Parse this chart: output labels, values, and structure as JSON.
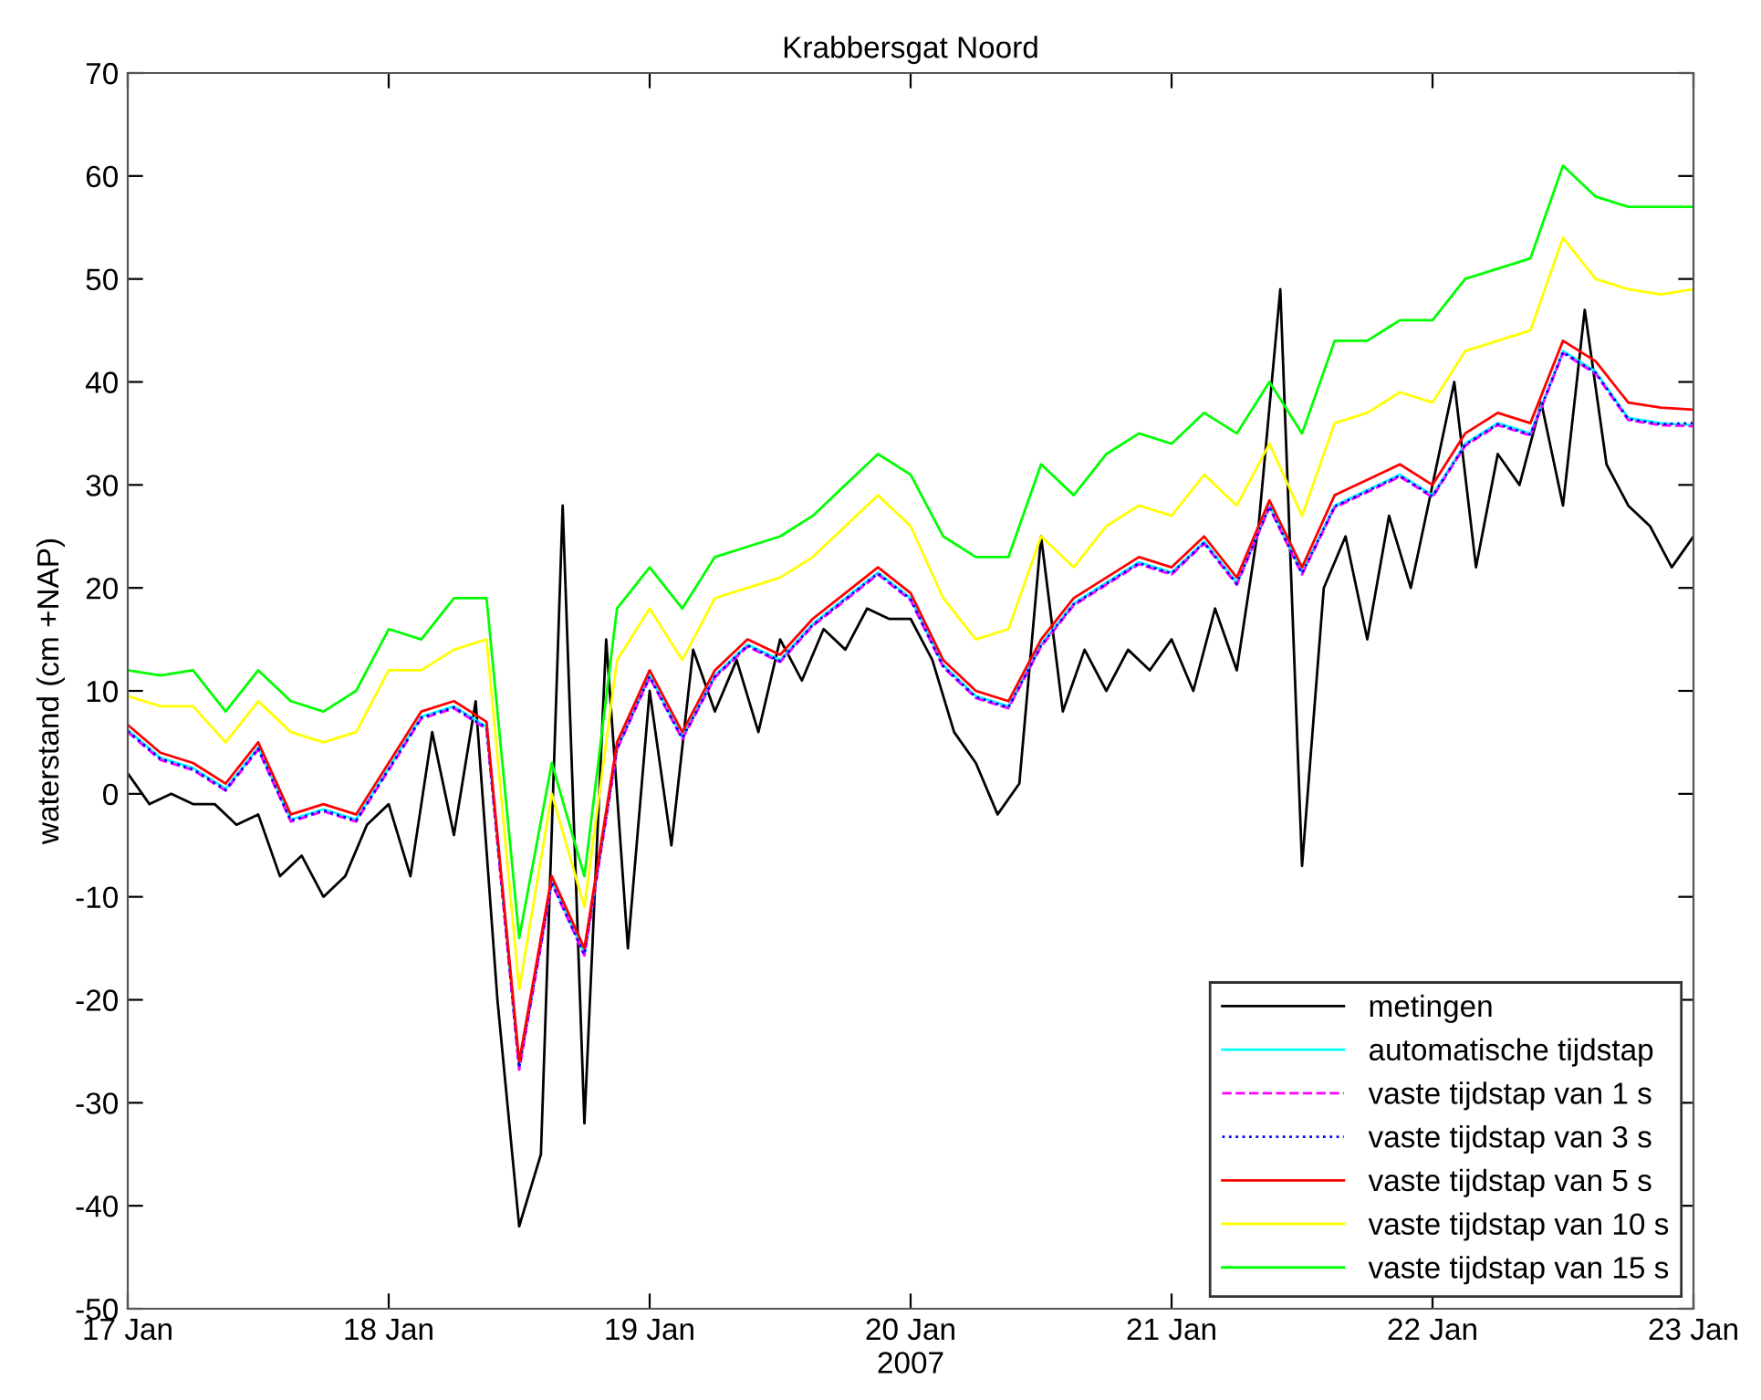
{
  "chart_data": {
    "type": "line",
    "title": "Krabbersgat Noord",
    "xlabel": "2007",
    "ylabel": "waterstand (cm +NAP)",
    "x": [
      "2007-01-17T00:00",
      "2007-01-17T03:00",
      "2007-01-17T06:00",
      "2007-01-17T09:00",
      "2007-01-17T12:00",
      "2007-01-17T15:00",
      "2007-01-17T18:00",
      "2007-01-17T21:00",
      "2007-01-18T00:00",
      "2007-01-18T03:00",
      "2007-01-18T06:00",
      "2007-01-18T09:00",
      "2007-01-18T12:00",
      "2007-01-18T15:00",
      "2007-01-18T18:00",
      "2007-01-18T21:00",
      "2007-01-19T00:00",
      "2007-01-19T03:00",
      "2007-01-19T06:00",
      "2007-01-19T09:00",
      "2007-01-19T12:00",
      "2007-01-19T15:00",
      "2007-01-19T18:00",
      "2007-01-19T21:00",
      "2007-01-20T00:00",
      "2007-01-20T03:00",
      "2007-01-20T06:00",
      "2007-01-20T09:00",
      "2007-01-20T12:00",
      "2007-01-20T15:00",
      "2007-01-20T18:00",
      "2007-01-20T21:00",
      "2007-01-21T00:00",
      "2007-01-21T03:00",
      "2007-01-21T06:00",
      "2007-01-21T09:00",
      "2007-01-21T12:00",
      "2007-01-21T15:00",
      "2007-01-21T18:00",
      "2007-01-21T21:00",
      "2007-01-22T00:00",
      "2007-01-22T03:00",
      "2007-01-22T06:00",
      "2007-01-22T09:00",
      "2007-01-22T12:00",
      "2007-01-22T15:00",
      "2007-01-22T18:00",
      "2007-01-22T21:00",
      "2007-01-23T00:00"
    ],
    "series": [
      {
        "name": "metingen",
        "color": "#000000",
        "x": [
          "2007-01-17T00:00",
          "2007-01-17T02:00",
          "2007-01-17T04:00",
          "2007-01-17T06:00",
          "2007-01-17T08:00",
          "2007-01-17T10:00",
          "2007-01-17T12:00",
          "2007-01-17T14:00",
          "2007-01-17T16:00",
          "2007-01-17T18:00",
          "2007-01-17T20:00",
          "2007-01-17T22:00",
          "2007-01-18T00:00",
          "2007-01-18T02:00",
          "2007-01-18T04:00",
          "2007-01-18T06:00",
          "2007-01-18T08:00",
          "2007-01-18T10:00",
          "2007-01-18T12:00",
          "2007-01-18T14:00",
          "2007-01-18T16:00",
          "2007-01-18T18:00",
          "2007-01-18T20:00",
          "2007-01-18T22:00",
          "2007-01-19T00:00",
          "2007-01-19T02:00",
          "2007-01-19T04:00",
          "2007-01-19T06:00",
          "2007-01-19T08:00",
          "2007-01-19T10:00",
          "2007-01-19T12:00",
          "2007-01-19T14:00",
          "2007-01-19T16:00",
          "2007-01-19T18:00",
          "2007-01-19T20:00",
          "2007-01-19T22:00",
          "2007-01-20T00:00",
          "2007-01-20T02:00",
          "2007-01-20T04:00",
          "2007-01-20T06:00",
          "2007-01-20T08:00",
          "2007-01-20T10:00",
          "2007-01-20T12:00",
          "2007-01-20T14:00",
          "2007-01-20T16:00",
          "2007-01-20T18:00",
          "2007-01-20T20:00",
          "2007-01-20T22:00",
          "2007-01-21T00:00",
          "2007-01-21T02:00",
          "2007-01-21T04:00",
          "2007-01-21T06:00",
          "2007-01-21T08:00",
          "2007-01-21T10:00",
          "2007-01-21T12:00",
          "2007-01-21T14:00",
          "2007-01-21T16:00",
          "2007-01-21T18:00",
          "2007-01-21T20:00",
          "2007-01-21T22:00",
          "2007-01-22T00:00",
          "2007-01-22T02:00",
          "2007-01-22T04:00",
          "2007-01-22T06:00",
          "2007-01-22T08:00",
          "2007-01-22T10:00",
          "2007-01-22T12:00",
          "2007-01-22T14:00",
          "2007-01-22T16:00",
          "2007-01-22T18:00",
          "2007-01-22T20:00",
          "2007-01-22T22:00",
          "2007-01-23T00:00"
        ],
        "values": [
          2,
          -1,
          0,
          -1,
          -1,
          -3,
          -2,
          -8,
          -6,
          -10,
          -8,
          -3,
          -1,
          -8,
          6,
          -4,
          9,
          -20,
          -42,
          -35,
          28,
          -32,
          15,
          -15,
          10,
          -5,
          14,
          8,
          13,
          6,
          15,
          11,
          16,
          14,
          18,
          17,
          17,
          13,
          6,
          3,
          -2,
          1,
          25,
          8,
          14,
          10,
          14,
          12,
          15,
          10,
          18,
          12,
          26,
          49,
          -7,
          20,
          25,
          15,
          27,
          20,
          30,
          40,
          22,
          33,
          30,
          38,
          28,
          47,
          32,
          28,
          26,
          22,
          25
        ]
      },
      {
        "name": "automatische tijdstap",
        "color": "#00ffff",
        "values": [
          6.2,
          3.5,
          2.5,
          0.5,
          4.5,
          -2.5,
          -1.5,
          -2.5,
          2.5,
          7.5,
          8.5,
          6.5,
          -26.5,
          -8.5,
          -15.5,
          4.5,
          11.5,
          5.5,
          11.5,
          14.5,
          13,
          16.5,
          19,
          21.5,
          19,
          12.5,
          9.5,
          8.5,
          14.5,
          18.5,
          20.5,
          22.5,
          21.5,
          24.5,
          20.5,
          28,
          21.5,
          28,
          29.5,
          31,
          29,
          34,
          36,
          35,
          43,
          41,
          36.5,
          36,
          35.8
        ]
      },
      {
        "name": "vaste tijdstap van 1 s",
        "color": "#ff00ff",
        "line_style": "dashed",
        "values": [
          6,
          3.3,
          2.3,
          0.3,
          4.3,
          -2.7,
          -1.7,
          -2.7,
          2.3,
          7.3,
          8.3,
          6.3,
          -26.8,
          -8.7,
          -15.7,
          4.3,
          11.3,
          5.3,
          11.3,
          14.3,
          12.8,
          16.3,
          18.8,
          21.3,
          18.8,
          12.3,
          9.3,
          8.3,
          14.3,
          18.3,
          20.3,
          22.3,
          21.3,
          24.3,
          20.3,
          27.8,
          21.3,
          27.8,
          29.3,
          30.8,
          28.8,
          33.8,
          35.8,
          34.8,
          42.8,
          40.8,
          36.3,
          35.8,
          35.7
        ]
      },
      {
        "name": "vaste tijdstap van 3 s",
        "color": "#0000ff",
        "line_style": "dotted",
        "values": [
          6.1,
          3.4,
          2.4,
          0.4,
          4.4,
          -2.6,
          -1.6,
          -2.6,
          2.4,
          7.4,
          8.4,
          6.4,
          -26.6,
          -8.6,
          -15.6,
          4.4,
          11.4,
          5.4,
          11.4,
          14.4,
          12.9,
          16.4,
          18.9,
          21.4,
          18.9,
          12.4,
          9.4,
          8.4,
          14.4,
          18.4,
          20.4,
          22.4,
          21.4,
          24.4,
          20.4,
          27.9,
          21.4,
          27.9,
          29.4,
          30.9,
          28.9,
          33.9,
          35.9,
          34.9,
          42.9,
          40.9,
          36.4,
          35.9,
          36
        ]
      },
      {
        "name": "vaste tijdstap van 5 s",
        "color": "#ff0000",
        "values": [
          6.7,
          4,
          3,
          1,
          5,
          -2,
          -1,
          -2,
          3,
          8,
          9,
          7,
          -26,
          -8,
          -15,
          5,
          12,
          6,
          12,
          15,
          13.5,
          17,
          19.5,
          22,
          19.5,
          13,
          10,
          9,
          15,
          19,
          21,
          23,
          22,
          25,
          21,
          28.5,
          22,
          29,
          30.5,
          32,
          30,
          35,
          37,
          36,
          44,
          42,
          38,
          37.5,
          37.3
        ]
      },
      {
        "name": "vaste tijdstap van 10 s",
        "color": "#ffff00",
        "values": [
          9.5,
          8.5,
          8.5,
          5,
          9,
          6,
          5,
          6,
          12,
          12,
          14,
          15,
          -19,
          0,
          -11,
          13,
          18,
          13,
          19,
          20,
          21,
          23,
          26,
          29,
          26,
          19,
          15,
          16,
          25,
          22,
          26,
          28,
          27,
          31,
          28,
          34,
          27,
          36,
          37,
          39,
          38,
          43,
          44,
          45,
          54,
          50,
          49,
          48.5,
          49
        ]
      },
      {
        "name": "vaste tijdstap van 15 s",
        "color": "#00ff00",
        "values": [
          12,
          11.5,
          12,
          8,
          12,
          9,
          8,
          10,
          16,
          15,
          19,
          19,
          -14,
          3,
          -8,
          18,
          22,
          18,
          23,
          24,
          25,
          27,
          30,
          33,
          31,
          25,
          23,
          23,
          32,
          29,
          33,
          35,
          34,
          37,
          35,
          40,
          35,
          44,
          44,
          46,
          46,
          50,
          51,
          52,
          61,
          58,
          57,
          57,
          57
        ]
      }
    ],
    "xlim": [
      "2007-01-17T00:00",
      "2007-01-23T00:00"
    ],
    "xticks": [
      {
        "value": "2007-01-17",
        "label": "17 Jan"
      },
      {
        "value": "2007-01-18",
        "label": "18 Jan"
      },
      {
        "value": "2007-01-19",
        "label": "19 Jan"
      },
      {
        "value": "2007-01-20",
        "label": "20 Jan"
      },
      {
        "value": "2007-01-21",
        "label": "21 Jan"
      },
      {
        "value": "2007-01-22",
        "label": "22 Jan"
      },
      {
        "value": "2007-01-23",
        "label": "23 Jan"
      }
    ],
    "ylim": [
      -50,
      70
    ],
    "yticks": [
      -50,
      -40,
      -30,
      -20,
      -10,
      0,
      10,
      20,
      30,
      40,
      50,
      60,
      70
    ],
    "legend": "bottom right",
    "grid": false
  }
}
